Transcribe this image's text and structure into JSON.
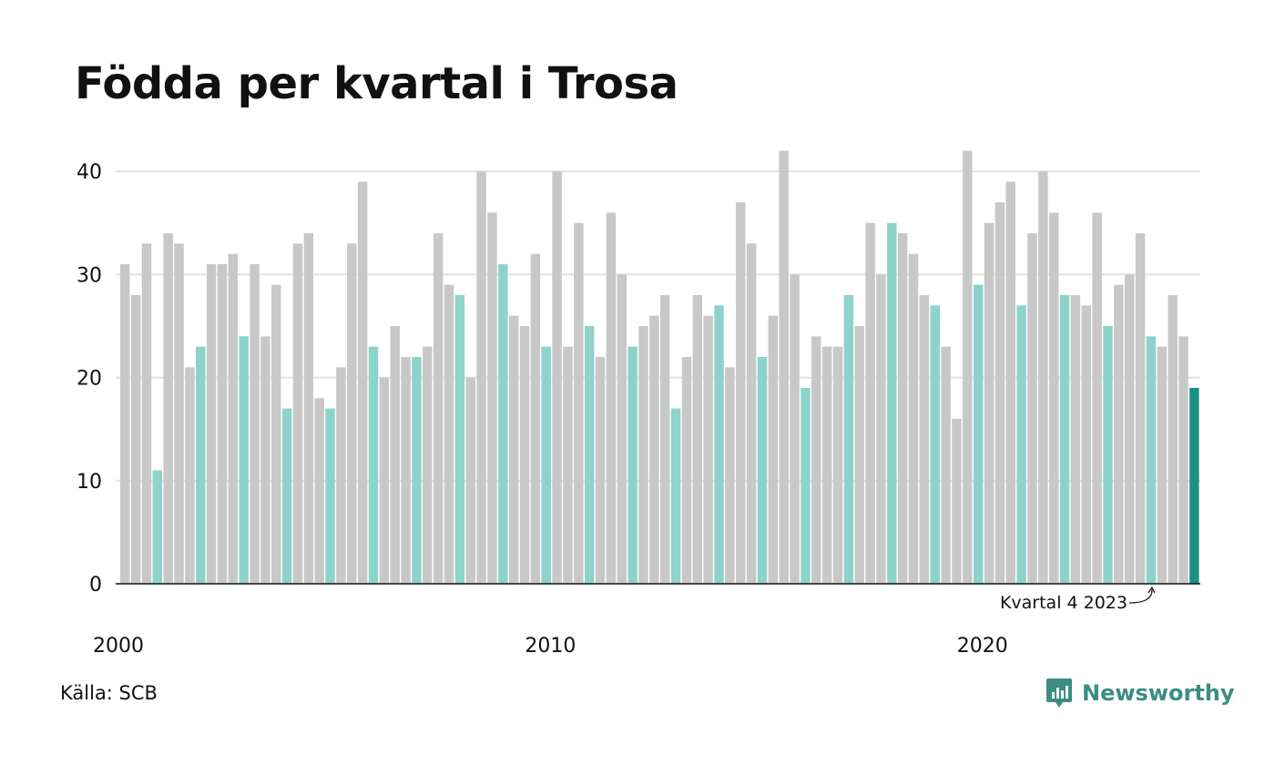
{
  "title": "Födda per kvartal i Trosa",
  "source": "Källa: SCB",
  "brand": "Newsworthy",
  "colors": {
    "other_quarters": "#c8c8c8",
    "q4": "#8dd3cc",
    "latest": "#1a9183",
    "brand": "#3c8c84"
  },
  "icons": {
    "logo": "bar-chart-speech-bubble-icon"
  },
  "chart_data": {
    "type": "bar",
    "title": "Födda per kvartal i Trosa",
    "xlabel": "",
    "ylabel": "",
    "ylim": [
      0,
      42
    ],
    "yticks": [
      0,
      10,
      20,
      30,
      40
    ],
    "x_tick_labels": [
      "2000",
      "2010",
      "2020"
    ],
    "grid": true,
    "start_year": 2000,
    "values": [
      31,
      28,
      33,
      11,
      34,
      33,
      21,
      23,
      31,
      31,
      32,
      24,
      31,
      24,
      29,
      17,
      33,
      34,
      18,
      17,
      21,
      33,
      39,
      23,
      20,
      25,
      22,
      22,
      23,
      34,
      29,
      28,
      20,
      40,
      36,
      31,
      26,
      25,
      32,
      23,
      40,
      23,
      35,
      25,
      22,
      36,
      30,
      23,
      25,
      26,
      28,
      17,
      22,
      28,
      26,
      27,
      21,
      37,
      33,
      22,
      26,
      42,
      30,
      19,
      24,
      23,
      23,
      28,
      25,
      35,
      30,
      35,
      34,
      32,
      28,
      27,
      23,
      16,
      42,
      29,
      35,
      37,
      39,
      27,
      34,
      40,
      36,
      28,
      28,
      27,
      36,
      25,
      29,
      30,
      34,
      24,
      23,
      28,
      24,
      19
    ],
    "annotation": "Kvartal 4 2023"
  }
}
